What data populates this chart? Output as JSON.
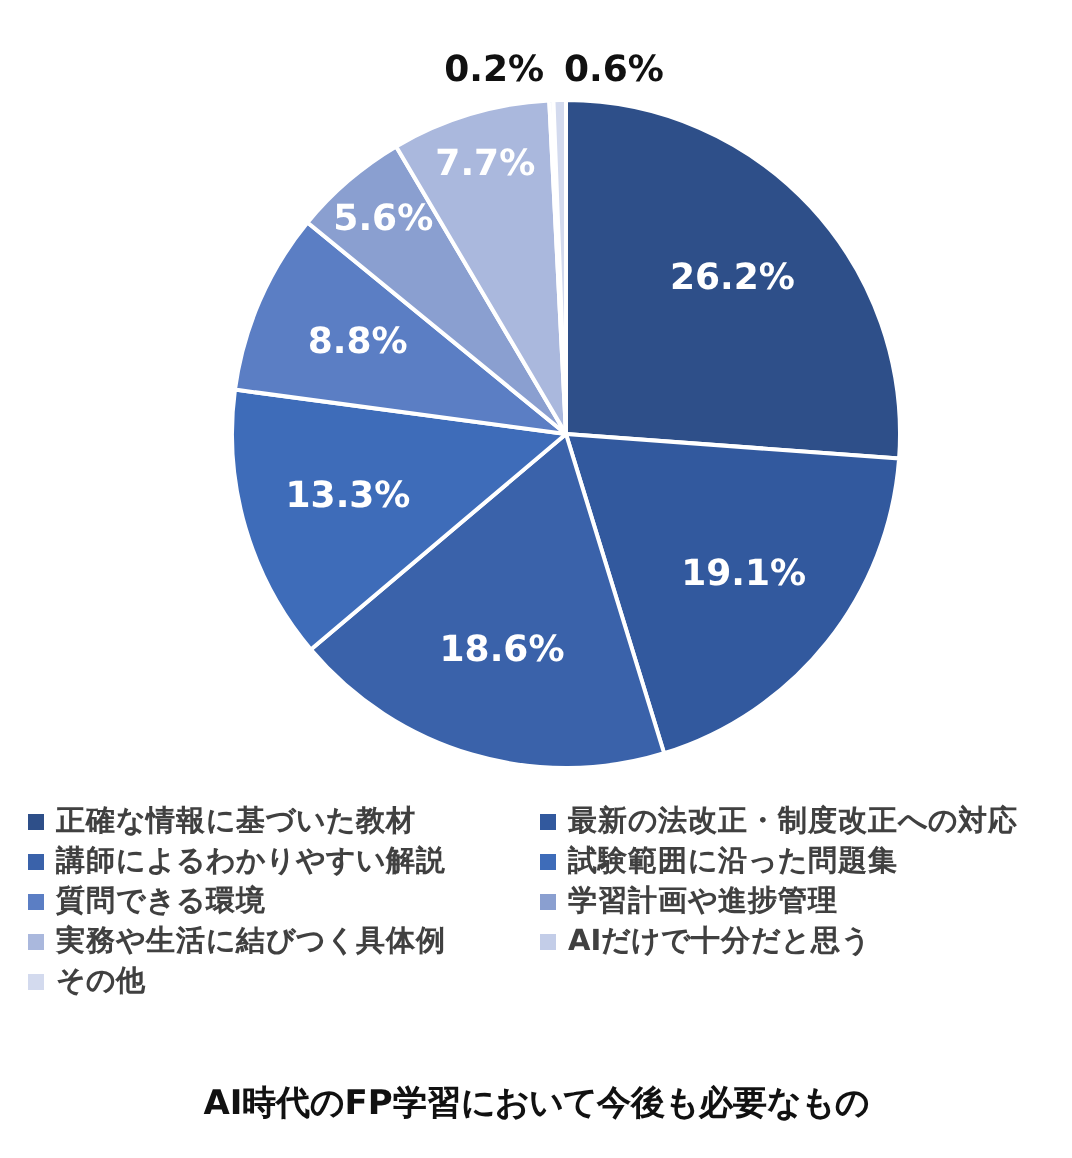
{
  "chart_data": {
    "type": "pie",
    "title": "AI時代のFP学習において今後も必要なもの",
    "categories": [
      "正確な情報に基づいた教材",
      "最新の法改正・制度改正への対応",
      "講師によるわかりやすい解説",
      "試験範囲に沿った問題集",
      "質問できる環境",
      "学習計画や進捗管理",
      "実務や生活に結びつく具体例",
      "AIだけで十分だと思う",
      "その他"
    ],
    "values": [
      26.2,
      19.1,
      18.6,
      13.3,
      8.8,
      5.6,
      7.7,
      0.2,
      0.6
    ],
    "value_labels": [
      "26.2%",
      "19.1%",
      "18.6%",
      "13.3%",
      "8.8%",
      "5.6%",
      "7.7%",
      "0.2%",
      "0.6%"
    ],
    "colors": [
      "#2e4f89",
      "#32599e",
      "#3a62aa",
      "#3e6cb9",
      "#5b7ec4",
      "#8a9fd0",
      "#aab8dd",
      "#c3cde8",
      "#d3daee"
    ],
    "legend": "bottom"
  }
}
